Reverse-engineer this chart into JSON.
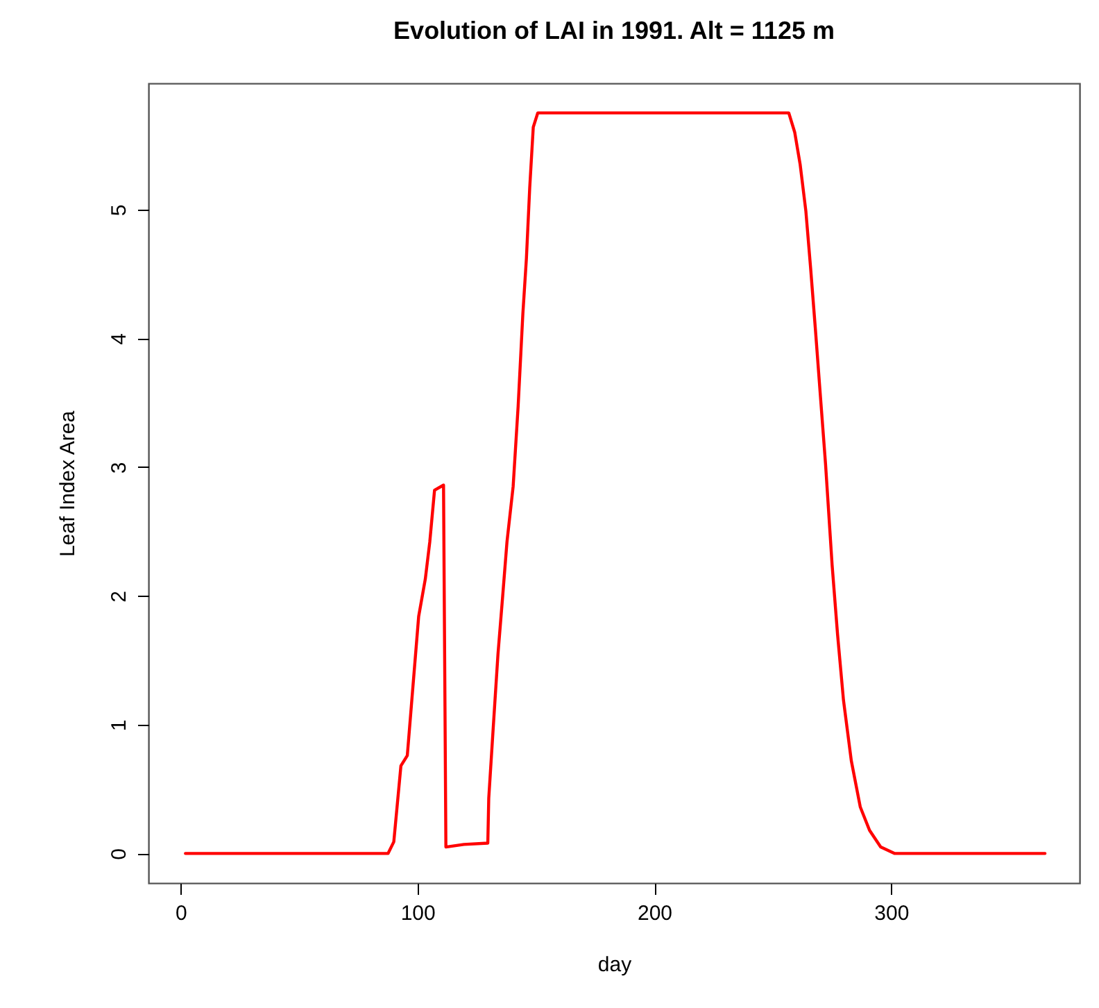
{
  "chart_data": {
    "type": "line",
    "title": "Evolution of LAI in 1991.  Alt = 1125 m",
    "xlabel": "day",
    "ylabel": "Leaf Index Area",
    "xlim": [
      -13.6,
      379.6
    ],
    "xticks": [
      0,
      100,
      200,
      300
    ],
    "ylim": [
      -0.23,
      5.98
    ],
    "yticks": [
      0,
      1,
      2,
      3,
      4,
      5
    ],
    "grid": false,
    "marker": "none",
    "line_style": "solid",
    "series": [
      {
        "color": "#ff0000",
        "x": [
          2,
          87.6,
          90,
          93,
          95.7,
          100.5,
          103.3,
          105.2,
          107.2,
          111,
          112,
          119.6,
          129.7,
          130.1,
          132,
          134,
          135.9,
          137.8,
          140.4,
          142.5,
          144.5,
          146,
          147.4,
          148.9,
          150.8,
          256.8,
          259.3,
          261.6,
          264,
          266,
          268,
          270.2,
          272.3,
          275.1,
          277.4,
          279.9,
          283.2,
          287,
          290.9,
          295.6,
          301.4,
          365
        ],
        "values": [
          0,
          0,
          0.09,
          0.68,
          0.76,
          1.84,
          2.13,
          2.42,
          2.82,
          2.86,
          0.05,
          0.07,
          0.08,
          0.43,
          0.98,
          1.55,
          1.98,
          2.42,
          2.85,
          3.47,
          4.19,
          4.62,
          5.17,
          5.64,
          5.75,
          5.75,
          5.6,
          5.35,
          4.99,
          4.55,
          4.08,
          3.54,
          3.03,
          2.24,
          1.7,
          1.19,
          0.72,
          0.36,
          0.18,
          0.05,
          0,
          0
        ]
      }
    ]
  }
}
